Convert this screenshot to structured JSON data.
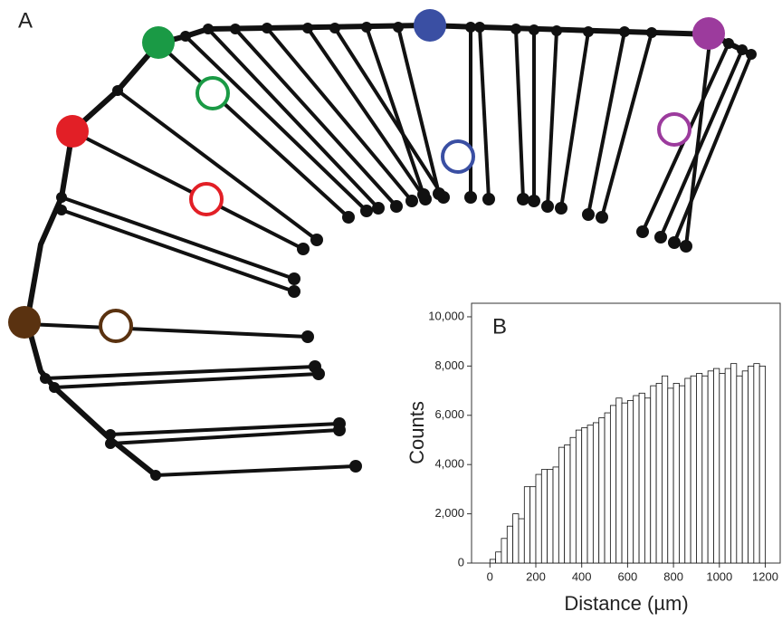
{
  "panel_a": {
    "label": "A"
  },
  "chart_data": {
    "type": "histogram",
    "panel_label": "B",
    "x_label": "Distance (µm)",
    "y_label": "Counts",
    "bins": [
      0,
      25,
      50,
      75,
      100,
      125,
      150,
      175,
      200,
      225,
      250,
      275,
      300,
      325,
      350,
      375,
      400,
      425,
      450,
      475,
      500,
      525,
      550,
      575,
      600,
      625,
      650,
      675,
      700,
      725,
      750,
      775,
      800,
      825,
      850,
      875,
      900,
      925,
      950,
      975,
      1000,
      1025,
      1050,
      1075,
      1100,
      1125,
      1150,
      1175,
      1200
    ],
    "values": [
      150,
      450,
      1000,
      1500,
      2000,
      1800,
      3100,
      3100,
      3600,
      3800,
      3800,
      3900,
      4700,
      4800,
      5100,
      5400,
      5500,
      5600,
      5700,
      5900,
      6100,
      6400,
      6700,
      6500,
      6600,
      6800,
      6900,
      6700,
      7200,
      7300,
      7600,
      7100,
      7300,
      7200,
      7500,
      7600,
      7700,
      7600,
      7800,
      7900,
      7700,
      7900,
      8100,
      7600,
      7800,
      8000,
      8100,
      8000
    ],
    "color": "#ffffff",
    "xlim": [
      -80,
      1265
    ],
    "ylim": [
      0,
      10550
    ],
    "xticks": [
      0,
      200,
      400,
      600,
      800,
      1000,
      1200
    ],
    "yticks": [
      0,
      {
        "value": 2000,
        "label": "2,000"
      },
      {
        "value": 4000,
        "label": "4,000"
      },
      {
        "value": 6000,
        "label": "6,000"
      },
      {
        "value": 8000,
        "label": "8,000"
      },
      {
        "value": 10000,
        "label": "10,000"
      }
    ]
  }
}
